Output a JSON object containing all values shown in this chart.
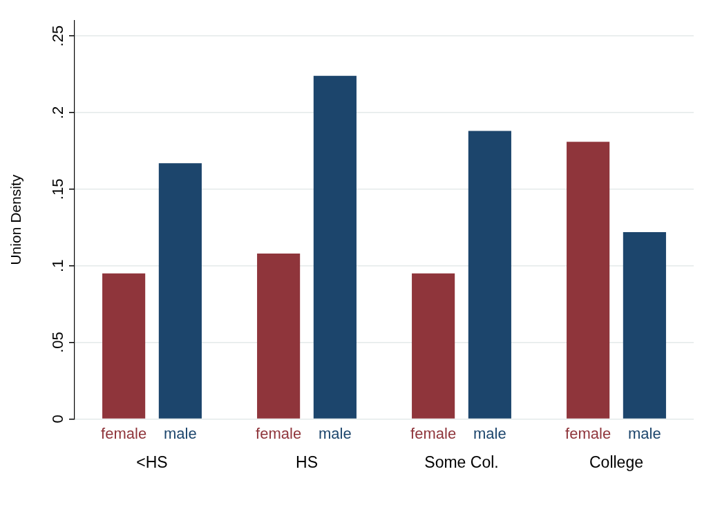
{
  "chart_data": {
    "type": "bar",
    "ylabel": "Union Density",
    "categories": [
      "<HS",
      "HS",
      "Some Col.",
      "College"
    ],
    "series": [
      {
        "name": "female",
        "color": "#8f353b",
        "values": [
          0.095,
          0.108,
          0.095,
          0.181
        ]
      },
      {
        "name": "male",
        "color": "#1c456c",
        "values": [
          0.167,
          0.224,
          0.188,
          0.122
        ]
      }
    ],
    "ylim": [
      0,
      0.26
    ],
    "yticks": [
      {
        "value": 0,
        "label": "0"
      },
      {
        "value": 0.05,
        "label": ".05"
      },
      {
        "value": 0.1,
        "label": ".1"
      },
      {
        "value": 0.15,
        "label": ".15"
      },
      {
        "value": 0.2,
        "label": ".2"
      },
      {
        "value": 0.25,
        "label": ".25"
      }
    ],
    "grid": "y",
    "legend": false
  }
}
